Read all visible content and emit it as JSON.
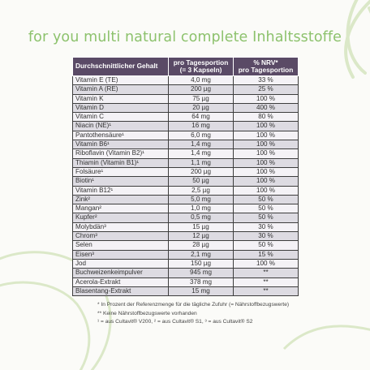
{
  "title": "for you multi natural complete Inhaltsstoffe",
  "table": {
    "headers": {
      "name": "Durchschnittlicher Gehalt",
      "dose_line1": "pro Tagesportion",
      "dose_line2": "(= 3 Kapseln)",
      "nrv_line1": "% NRV*",
      "nrv_line2": "pro Tagesportion"
    },
    "rows": [
      {
        "name": "Vitamin E (TE)",
        "dose": "4,0 mg",
        "nrv": "33 %"
      },
      {
        "name": "Vitamin A (RE)",
        "dose": "200 µg",
        "nrv": "25 %"
      },
      {
        "name": "Vitamin K",
        "dose": "75 µg",
        "nrv": "100 %"
      },
      {
        "name": "Vitamin D",
        "dose": "20 µg",
        "nrv": "400 %"
      },
      {
        "name": "Vitamin C",
        "dose": "64 mg",
        "nrv": "80 %"
      },
      {
        "name": "Niacin (NE)¹",
        "dose": "16 mg",
        "nrv": "100 %"
      },
      {
        "name": "Pantothensäure¹",
        "dose": "6,0 mg",
        "nrv": "100 %"
      },
      {
        "name": "Vitamin B6¹",
        "dose": "1,4 mg",
        "nrv": "100 %"
      },
      {
        "name": "Riboflavin (Vitamin B2)¹",
        "dose": "1,4 mg",
        "nrv": "100 %"
      },
      {
        "name": "Thiamin (Vitamin B1)¹",
        "dose": "1,1 mg",
        "nrv": "100 %"
      },
      {
        "name": "Folsäure¹",
        "dose": "200 µg",
        "nrv": "100 %"
      },
      {
        "name": "Biotin¹",
        "dose": "50 µg",
        "nrv": "100 %"
      },
      {
        "name": "Vitamin B12¹",
        "dose": "2,5 µg",
        "nrv": "100 %"
      },
      {
        "name": "Zink²",
        "dose": "5,0 mg",
        "nrv": "50 %"
      },
      {
        "name": "Mangan²",
        "dose": "1,0 mg",
        "nrv": "50 %"
      },
      {
        "name": "Kupfer²",
        "dose": "0,5 mg",
        "nrv": "50 %"
      },
      {
        "name": "Molybdän³",
        "dose": "15 µg",
        "nrv": "30 %"
      },
      {
        "name": "Chrom³",
        "dose": "12 µg",
        "nrv": "30 %"
      },
      {
        "name": "Selen",
        "dose": "28 µg",
        "nrv": "50 %"
      },
      {
        "name": "Eisen³",
        "dose": "2,1 mg",
        "nrv": "15 %"
      },
      {
        "name": "Jod",
        "dose": "150 µg",
        "nrv": "100 %"
      },
      {
        "name": "Buchweizenkeimpulver",
        "dose": "945 mg",
        "nrv": "**"
      },
      {
        "name": "Acerola-Extrakt",
        "dose": "378 mg",
        "nrv": "**"
      },
      {
        "name": "Blasentang-Extrakt",
        "dose": "15 mg",
        "nrv": "**"
      }
    ]
  },
  "footnotes": {
    "note1": "* In Prozent der Referenzmenge für die tägliche Zufuhr (= Nährstoffbezugswerte)",
    "note2": "** Keine Nährstoffbezugswerte vorhanden",
    "note3": "¹ =  aus Cultavit® V200, ² =  aus Cultavit® S1, ³ = aus Cultavit® S2"
  },
  "colors": {
    "title": "#8dc26d",
    "header_bg": "#5a4a66",
    "row_light": "#f4f2f6",
    "row_dark": "#dddbe2",
    "decoration": "#cfe0b8"
  }
}
